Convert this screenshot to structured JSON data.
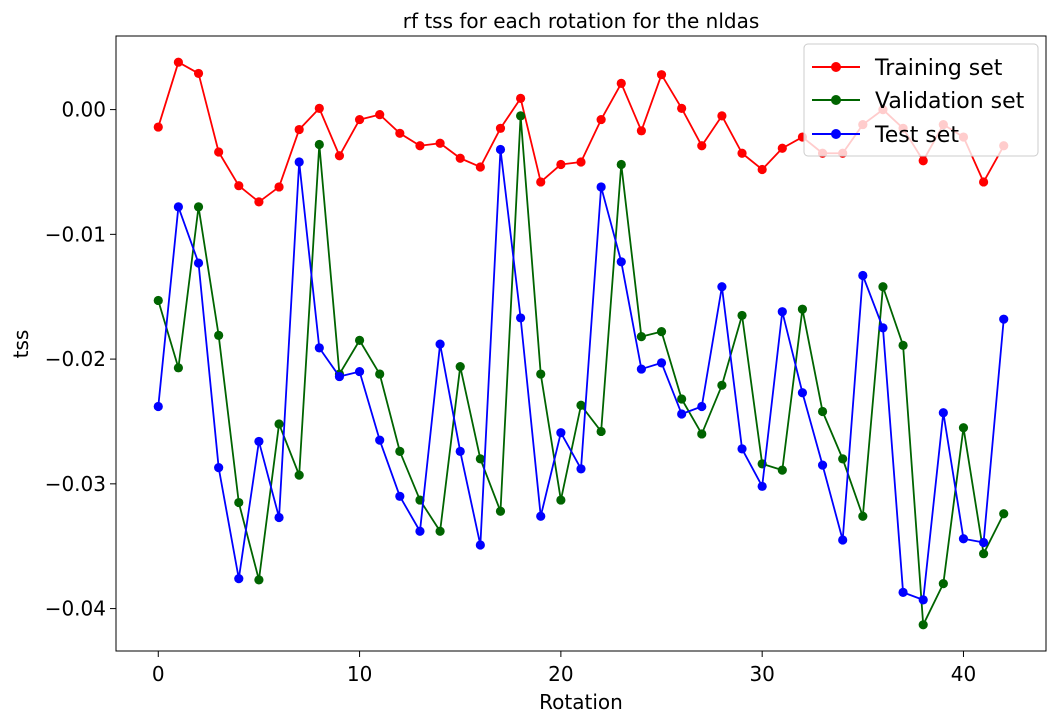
{
  "chart_data": {
    "type": "line",
    "title": "rf tss for each rotation for the nldas",
    "xlabel": "Rotation",
    "ylabel": "tss",
    "xlim": [
      -2.1,
      44.1
    ],
    "ylim": [
      -0.0434,
      0.0059
    ],
    "x_ticks": [
      0,
      10,
      20,
      30,
      40
    ],
    "y_ticks": [
      0.0,
      -0.01,
      -0.02,
      -0.03,
      -0.04
    ],
    "y_tick_labels": [
      "0.00",
      "−0.01",
      "−0.02",
      "−0.03",
      "−0.04"
    ],
    "x": [
      0,
      1,
      2,
      3,
      4,
      5,
      6,
      7,
      8,
      9,
      10,
      11,
      12,
      13,
      14,
      15,
      16,
      17,
      18,
      19,
      20,
      21,
      22,
      23,
      24,
      25,
      26,
      27,
      28,
      29,
      30,
      31,
      32,
      33,
      34,
      35,
      36,
      37,
      38,
      39,
      40,
      41,
      42
    ],
    "legend_position": "top-right",
    "grid": false,
    "series": [
      {
        "name": "Training set",
        "color": "#ff0000",
        "values": [
          -0.0014,
          0.0038,
          0.0029,
          -0.0034,
          -0.0061,
          -0.0074,
          -0.0062,
          -0.0016,
          0.0001,
          -0.0037,
          -0.0008,
          -0.0004,
          -0.0019,
          -0.0029,
          -0.0027,
          -0.0039,
          -0.0046,
          -0.0015,
          0.0009,
          -0.0058,
          -0.0044,
          -0.0042,
          -0.0008,
          0.0021,
          -0.0017,
          0.0028,
          0.0001,
          -0.0029,
          -0.0005,
          -0.0035,
          -0.0048,
          -0.0031,
          -0.0022,
          -0.0035,
          -0.0035,
          -0.0012,
          0.0,
          -0.0015,
          -0.0041,
          -0.0012,
          -0.0022,
          -0.0058,
          -0.0029
        ]
      },
      {
        "name": "Validation set",
        "color": "#006400",
        "values": [
          -0.0153,
          -0.0207,
          -0.0078,
          -0.0181,
          -0.0315,
          -0.0377,
          -0.0252,
          -0.0293,
          -0.0028,
          -0.0212,
          -0.0185,
          -0.0212,
          -0.0274,
          -0.0313,
          -0.0338,
          -0.0206,
          -0.028,
          -0.0322,
          -0.0005,
          -0.0212,
          -0.0313,
          -0.0237,
          -0.0258,
          -0.0044,
          -0.0182,
          -0.0178,
          -0.0232,
          -0.026,
          -0.0221,
          -0.0165,
          -0.0284,
          -0.0289,
          -0.016,
          -0.0242,
          -0.028,
          -0.0326,
          -0.0142,
          -0.0189,
          -0.0413,
          -0.038,
          -0.0255,
          -0.0356,
          -0.0324
        ]
      },
      {
        "name": "Test set",
        "color": "#0000ff",
        "values": [
          -0.0238,
          -0.0078,
          -0.0123,
          -0.0287,
          -0.0376,
          -0.0266,
          -0.0327,
          -0.0042,
          -0.0191,
          -0.0214,
          -0.021,
          -0.0265,
          -0.031,
          -0.0338,
          -0.0188,
          -0.0274,
          -0.0349,
          -0.0032,
          -0.0167,
          -0.0326,
          -0.0259,
          -0.0288,
          -0.0062,
          -0.0122,
          -0.0208,
          -0.0203,
          -0.0244,
          -0.0238,
          -0.0142,
          -0.0272,
          -0.0302,
          -0.0162,
          -0.0227,
          -0.0285,
          -0.0345,
          -0.0133,
          -0.0175,
          -0.0387,
          -0.0393,
          -0.0243,
          -0.0344,
          -0.0347,
          -0.0168
        ]
      }
    ]
  }
}
